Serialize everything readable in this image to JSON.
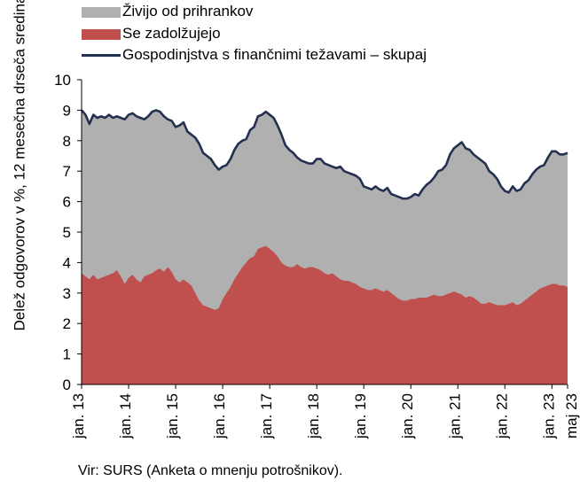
{
  "chart_data": {
    "type": "area",
    "ylabel": "Delež odgovorov v %, 12 mesečna drseča sredina",
    "ylim": [
      0,
      10
    ],
    "yticks": [
      "0",
      "1",
      "2",
      "3",
      "4",
      "5",
      "6",
      "7",
      "8",
      "9",
      "10"
    ],
    "xticks": [
      "jan. 13",
      "jan. 14",
      "jan. 15",
      "jan. 16",
      "jan. 17",
      "jan. 18",
      "jan. 19",
      "jan. 20",
      "jan. 21",
      "jan. 22",
      "jan. 23",
      "maj 23"
    ],
    "grid": false,
    "legend": "top",
    "series": [
      {
        "name": "Živijo od prihrankov",
        "kind": "area",
        "color": "#b0b0b0",
        "points": [
          [
            0,
            9.0
          ],
          [
            1,
            8.85
          ],
          [
            2,
            8.55
          ],
          [
            3,
            8.85
          ],
          [
            4,
            8.75
          ],
          [
            5,
            8.8
          ],
          [
            6,
            8.75
          ],
          [
            7,
            8.85
          ],
          [
            8,
            8.75
          ],
          [
            9,
            8.8
          ],
          [
            10,
            8.75
          ],
          [
            11,
            8.7
          ],
          [
            12,
            8.85
          ],
          [
            13,
            8.9
          ],
          [
            14,
            8.8
          ],
          [
            15,
            8.75
          ],
          [
            16,
            8.7
          ],
          [
            17,
            8.8
          ],
          [
            18,
            8.95
          ],
          [
            19,
            9.0
          ],
          [
            20,
            8.95
          ],
          [
            21,
            8.8
          ],
          [
            22,
            8.7
          ],
          [
            23,
            8.65
          ],
          [
            24,
            8.45
          ],
          [
            25,
            8.5
          ],
          [
            26,
            8.6
          ],
          [
            27,
            8.3
          ],
          [
            28,
            8.2
          ],
          [
            29,
            8.1
          ],
          [
            30,
            7.9
          ],
          [
            31,
            7.6
          ],
          [
            32,
            7.5
          ],
          [
            33,
            7.4
          ],
          [
            34,
            7.2
          ],
          [
            35,
            7.05
          ],
          [
            36,
            7.15
          ],
          [
            37,
            7.2
          ],
          [
            38,
            7.4
          ],
          [
            39,
            7.7
          ],
          [
            40,
            7.9
          ],
          [
            41,
            8.0
          ],
          [
            42,
            8.05
          ],
          [
            43,
            8.35
          ],
          [
            44,
            8.45
          ],
          [
            45,
            8.8
          ],
          [
            46,
            8.85
          ],
          [
            47,
            8.95
          ],
          [
            48,
            8.85
          ],
          [
            49,
            8.75
          ],
          [
            50,
            8.5
          ],
          [
            51,
            8.2
          ],
          [
            52,
            7.85
          ],
          [
            53,
            7.7
          ],
          [
            54,
            7.6
          ],
          [
            55,
            7.45
          ],
          [
            56,
            7.35
          ],
          [
            57,
            7.3
          ],
          [
            58,
            7.25
          ],
          [
            59,
            7.25
          ],
          [
            60,
            7.4
          ],
          [
            61,
            7.4
          ],
          [
            62,
            7.25
          ],
          [
            63,
            7.2
          ],
          [
            64,
            7.15
          ],
          [
            65,
            7.1
          ],
          [
            66,
            7.15
          ],
          [
            67,
            7.0
          ],
          [
            68,
            6.95
          ],
          [
            69,
            6.9
          ],
          [
            70,
            6.85
          ],
          [
            71,
            6.75
          ],
          [
            72,
            6.5
          ],
          [
            73,
            6.45
          ],
          [
            74,
            6.4
          ],
          [
            75,
            6.5
          ],
          [
            76,
            6.4
          ],
          [
            77,
            6.35
          ],
          [
            78,
            6.45
          ],
          [
            79,
            6.25
          ],
          [
            80,
            6.2
          ],
          [
            81,
            6.15
          ],
          [
            82,
            6.1
          ],
          [
            83,
            6.1
          ],
          [
            84,
            6.15
          ],
          [
            85,
            6.25
          ],
          [
            86,
            6.2
          ],
          [
            87,
            6.4
          ],
          [
            88,
            6.55
          ],
          [
            89,
            6.65
          ],
          [
            90,
            6.8
          ],
          [
            91,
            7.0
          ],
          [
            92,
            7.05
          ],
          [
            93,
            7.2
          ],
          [
            94,
            7.55
          ],
          [
            95,
            7.75
          ],
          [
            96,
            7.85
          ],
          [
            97,
            7.95
          ],
          [
            98,
            7.75
          ],
          [
            99,
            7.7
          ],
          [
            100,
            7.55
          ],
          [
            101,
            7.45
          ],
          [
            102,
            7.35
          ],
          [
            103,
            7.25
          ],
          [
            104,
            7.0
          ],
          [
            105,
            6.9
          ],
          [
            106,
            6.75
          ],
          [
            107,
            6.5
          ],
          [
            108,
            6.35
          ],
          [
            109,
            6.3
          ],
          [
            110,
            6.5
          ],
          [
            111,
            6.35
          ],
          [
            112,
            6.4
          ],
          [
            113,
            6.6
          ],
          [
            114,
            6.7
          ],
          [
            115,
            6.9
          ],
          [
            116,
            7.05
          ],
          [
            117,
            7.15
          ],
          [
            118,
            7.2
          ],
          [
            119,
            7.45
          ],
          [
            120,
            7.65
          ],
          [
            121,
            7.65
          ],
          [
            122,
            7.55
          ],
          [
            123,
            7.55
          ],
          [
            124,
            7.6
          ]
        ]
      },
      {
        "name": "Se zadolžujejo",
        "kind": "area",
        "color": "#c0504d",
        "points": [
          [
            0,
            3.65
          ],
          [
            1,
            3.55
          ],
          [
            2,
            3.45
          ],
          [
            3,
            3.6
          ],
          [
            4,
            3.45
          ],
          [
            5,
            3.5
          ],
          [
            6,
            3.55
          ],
          [
            7,
            3.6
          ],
          [
            8,
            3.65
          ],
          [
            9,
            3.75
          ],
          [
            10,
            3.55
          ],
          [
            11,
            3.3
          ],
          [
            12,
            3.5
          ],
          [
            13,
            3.6
          ],
          [
            14,
            3.45
          ],
          [
            15,
            3.35
          ],
          [
            16,
            3.55
          ],
          [
            17,
            3.6
          ],
          [
            18,
            3.65
          ],
          [
            19,
            3.75
          ],
          [
            20,
            3.8
          ],
          [
            21,
            3.7
          ],
          [
            22,
            3.85
          ],
          [
            23,
            3.7
          ],
          [
            24,
            3.45
          ],
          [
            25,
            3.35
          ],
          [
            26,
            3.45
          ],
          [
            27,
            3.35
          ],
          [
            28,
            3.25
          ],
          [
            29,
            3.0
          ],
          [
            30,
            2.75
          ],
          [
            31,
            2.6
          ],
          [
            32,
            2.55
          ],
          [
            33,
            2.5
          ],
          [
            34,
            2.45
          ],
          [
            35,
            2.5
          ],
          [
            36,
            2.8
          ],
          [
            37,
            3.0
          ],
          [
            38,
            3.2
          ],
          [
            39,
            3.45
          ],
          [
            40,
            3.65
          ],
          [
            41,
            3.85
          ],
          [
            42,
            4.0
          ],
          [
            43,
            4.15
          ],
          [
            44,
            4.2
          ],
          [
            45,
            4.45
          ],
          [
            46,
            4.5
          ],
          [
            47,
            4.55
          ],
          [
            48,
            4.45
          ],
          [
            49,
            4.35
          ],
          [
            50,
            4.2
          ],
          [
            51,
            4.0
          ],
          [
            52,
            3.9
          ],
          [
            53,
            3.85
          ],
          [
            54,
            3.85
          ],
          [
            55,
            3.95
          ],
          [
            56,
            3.85
          ],
          [
            57,
            3.8
          ],
          [
            58,
            3.85
          ],
          [
            59,
            3.85
          ],
          [
            60,
            3.8
          ],
          [
            61,
            3.75
          ],
          [
            62,
            3.65
          ],
          [
            63,
            3.6
          ],
          [
            64,
            3.65
          ],
          [
            65,
            3.55
          ],
          [
            66,
            3.45
          ],
          [
            67,
            3.4
          ],
          [
            68,
            3.4
          ],
          [
            69,
            3.35
          ],
          [
            70,
            3.3
          ],
          [
            71,
            3.2
          ],
          [
            72,
            3.15
          ],
          [
            73,
            3.1
          ],
          [
            74,
            3.1
          ],
          [
            75,
            3.15
          ],
          [
            76,
            3.1
          ],
          [
            77,
            3.05
          ],
          [
            78,
            3.1
          ],
          [
            79,
            3.0
          ],
          [
            80,
            2.9
          ],
          [
            81,
            2.8
          ],
          [
            82,
            2.75
          ],
          [
            83,
            2.75
          ],
          [
            84,
            2.8
          ],
          [
            85,
            2.8
          ],
          [
            86,
            2.85
          ],
          [
            87,
            2.85
          ],
          [
            88,
            2.85
          ],
          [
            89,
            2.9
          ],
          [
            90,
            2.95
          ],
          [
            91,
            2.9
          ],
          [
            92,
            2.9
          ],
          [
            93,
            2.95
          ],
          [
            94,
            3.0
          ],
          [
            95,
            3.05
          ],
          [
            96,
            3.0
          ],
          [
            97,
            2.95
          ],
          [
            98,
            2.85
          ],
          [
            99,
            2.9
          ],
          [
            100,
            2.85
          ],
          [
            101,
            2.75
          ],
          [
            102,
            2.65
          ],
          [
            103,
            2.65
          ],
          [
            104,
            2.7
          ],
          [
            105,
            2.65
          ],
          [
            106,
            2.6
          ],
          [
            107,
            2.6
          ],
          [
            108,
            2.6
          ],
          [
            109,
            2.65
          ],
          [
            110,
            2.7
          ],
          [
            111,
            2.6
          ],
          [
            112,
            2.65
          ],
          [
            113,
            2.75
          ],
          [
            114,
            2.85
          ],
          [
            115,
            2.95
          ],
          [
            116,
            3.05
          ],
          [
            117,
            3.15
          ],
          [
            118,
            3.2
          ],
          [
            119,
            3.25
          ],
          [
            120,
            3.3
          ],
          [
            121,
            3.3
          ],
          [
            122,
            3.25
          ],
          [
            123,
            3.25
          ],
          [
            124,
            3.2
          ]
        ]
      },
      {
        "name": "Gospodinjstva s finančnimi težavami – skupaj",
        "kind": "line",
        "color": "#243050",
        "same_as": "Živijo od prihrankov"
      }
    ]
  },
  "legend": [
    {
      "label": "Živijo od prihrankov",
      "color": "#b0b0b0"
    },
    {
      "label": "Se zadolžujejo",
      "color": "#c0504d"
    },
    {
      "label": "Gospodinjstva s finančnimi težavami – skupaj",
      "color": "#243050"
    }
  ],
  "source": "Vir: SURS (Anketa o mnenju potrošnikov)."
}
